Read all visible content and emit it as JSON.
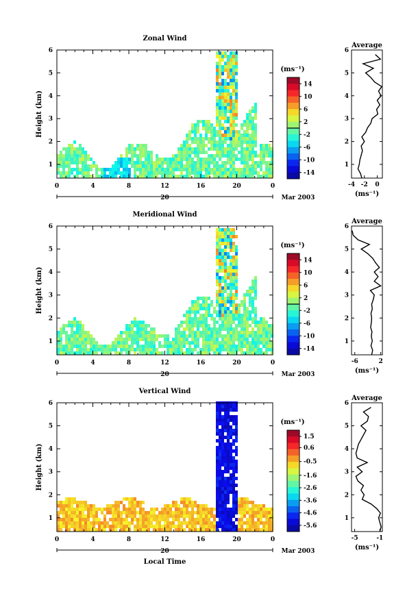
{
  "figure": {
    "x_axis_label": "Local Time",
    "date_label": "Mar 2003",
    "day_label": "20",
    "y_axis_label": "Height (km)",
    "cbar_unit": "(ms⁻¹)",
    "avg_unit": "(ms⁻¹)"
  },
  "chart_data": [
    {
      "type": "heatmap",
      "title": "Zonal Wind",
      "ylabel": "Height (km)",
      "xlabel": "",
      "x_ticks": [
        "0",
        "4",
        "8",
        "12",
        "16",
        "20",
        "0"
      ],
      "x_range": [
        0,
        24
      ],
      "y_ticks": [
        "1",
        "2",
        "3",
        "4",
        "5",
        "6"
      ],
      "y_range": [
        0.4,
        6
      ],
      "colorbar": {
        "label": "(ms⁻¹)",
        "ticks": [
          "14",
          "10",
          "6",
          "2",
          "-2",
          "-6",
          "-10",
          "-14"
        ],
        "range": [
          -16,
          16
        ],
        "contour_level": 0
      },
      "average_profile": {
        "title": "Average",
        "xlabel": "(ms⁻¹)",
        "x_ticks": [
          "-4",
          "-2",
          "0"
        ],
        "x_range": [
          -4,
          0.8
        ],
        "y_ticks": [
          "1",
          "2",
          "3",
          "4",
          "5",
          "6"
        ],
        "heights": [
          0.4,
          0.6,
          0.8,
          1.0,
          1.2,
          1.4,
          1.6,
          1.8,
          2.0,
          2.2,
          2.4,
          2.6,
          2.8,
          3.0,
          3.2,
          3.4,
          3.6,
          3.8,
          4.0,
          4.2,
          4.4,
          4.6,
          4.8,
          5.0,
          5.2,
          5.4,
          5.6,
          5.8
        ],
        "values": [
          -2.4,
          -2.6,
          -3.0,
          -2.8,
          -2.7,
          -2.5,
          -2.3,
          -2.5,
          -2.0,
          -2.4,
          -1.8,
          -1.5,
          -1.0,
          -0.8,
          0.1,
          -0.1,
          0.4,
          0.0,
          0.6,
          0.2,
          0.7,
          -0.4,
          -1.0,
          -1.8,
          -0.6,
          -2.2,
          0.5,
          -0.3
        ]
      }
    },
    {
      "type": "heatmap",
      "title": "Meridional Wind",
      "ylabel": "Height (km)",
      "xlabel": "",
      "x_ticks": [
        "0",
        "4",
        "8",
        "12",
        "16",
        "20",
        "0"
      ],
      "x_range": [
        0,
        24
      ],
      "y_ticks": [
        "1",
        "2",
        "3",
        "4",
        "5",
        "6"
      ],
      "y_range": [
        0.4,
        6
      ],
      "colorbar": {
        "label": "(ms⁻¹)",
        "ticks": [
          "14",
          "10",
          "6",
          "2",
          "-2",
          "-6",
          "-10",
          "-14"
        ],
        "range": [
          -16,
          16
        ],
        "contour_level": 0
      },
      "average_profile": {
        "title": "Average",
        "xlabel": "(ms⁻¹)",
        "x_ticks": [
          "-6",
          "2"
        ],
        "x_range": [
          -7,
          2.5
        ],
        "y_ticks": [
          "1",
          "2",
          "3",
          "4",
          "5",
          "6"
        ],
        "heights": [
          0.4,
          0.6,
          0.8,
          1.0,
          1.2,
          1.4,
          1.6,
          1.8,
          2.0,
          2.2,
          2.4,
          2.6,
          2.8,
          3.0,
          3.2,
          3.4,
          3.6,
          3.8,
          4.0,
          4.2,
          4.4,
          4.6,
          4.8,
          5.0,
          5.2,
          5.4,
          5.6,
          5.8
        ],
        "values": [
          -0.8,
          -0.5,
          -1.0,
          -0.6,
          -0.9,
          -0.7,
          -1.1,
          -0.9,
          -0.8,
          -1.0,
          -0.6,
          -0.8,
          -0.3,
          0.0,
          -1.2,
          2.0,
          0.0,
          1.2,
          0.0,
          1.6,
          0.4,
          -0.5,
          -2.0,
          -4.0,
          -1.5,
          -5.0,
          -6.5,
          -6.8
        ]
      }
    },
    {
      "type": "heatmap",
      "title": "Vertical Wind",
      "ylabel": "Height (km)",
      "xlabel": "Local Time",
      "x_ticks": [
        "0",
        "4",
        "8",
        "12",
        "16",
        "20",
        "0"
      ],
      "x_range": [
        0,
        24
      ],
      "y_ticks": [
        "1",
        "2",
        "3",
        "4",
        "5",
        "6"
      ],
      "y_range": [
        0.4,
        6
      ],
      "colorbar": {
        "label": "(ms⁻¹)",
        "ticks": [
          "1.5",
          "0.6",
          "-0.5",
          "-1.6",
          "-2.6",
          "-3.6",
          "-4.6",
          "-5.6"
        ],
        "range": [
          -6.1,
          2.0
        ]
      },
      "average_profile": {
        "title": "Average",
        "xlabel": "(ms⁻¹)",
        "x_ticks": [
          "-5",
          "-1"
        ],
        "x_range": [
          -5.5,
          -0.6
        ],
        "y_ticks": [
          "1",
          "2",
          "3",
          "4",
          "5",
          "6"
        ],
        "heights": [
          0.4,
          0.6,
          0.8,
          1.0,
          1.2,
          1.4,
          1.6,
          1.8,
          2.0,
          2.2,
          2.4,
          2.6,
          2.8,
          3.0,
          3.2,
          3.4,
          3.6,
          3.8,
          4.0,
          4.2,
          4.4,
          4.6,
          4.8,
          5.0,
          5.2,
          5.4,
          5.6,
          5.8
        ],
        "values": [
          -1.0,
          -0.8,
          -1.0,
          -1.2,
          -0.9,
          -1.5,
          -2.4,
          -3.8,
          -3.5,
          -4.0,
          -3.6,
          -4.5,
          -4.8,
          -3.8,
          -4.6,
          -3.0,
          -4.6,
          -4.8,
          -4.6,
          -4.4,
          -4.0,
          -3.6,
          -3.2,
          -4.0,
          -3.0,
          -2.8,
          -3.6,
          -2.4
        ]
      }
    }
  ]
}
